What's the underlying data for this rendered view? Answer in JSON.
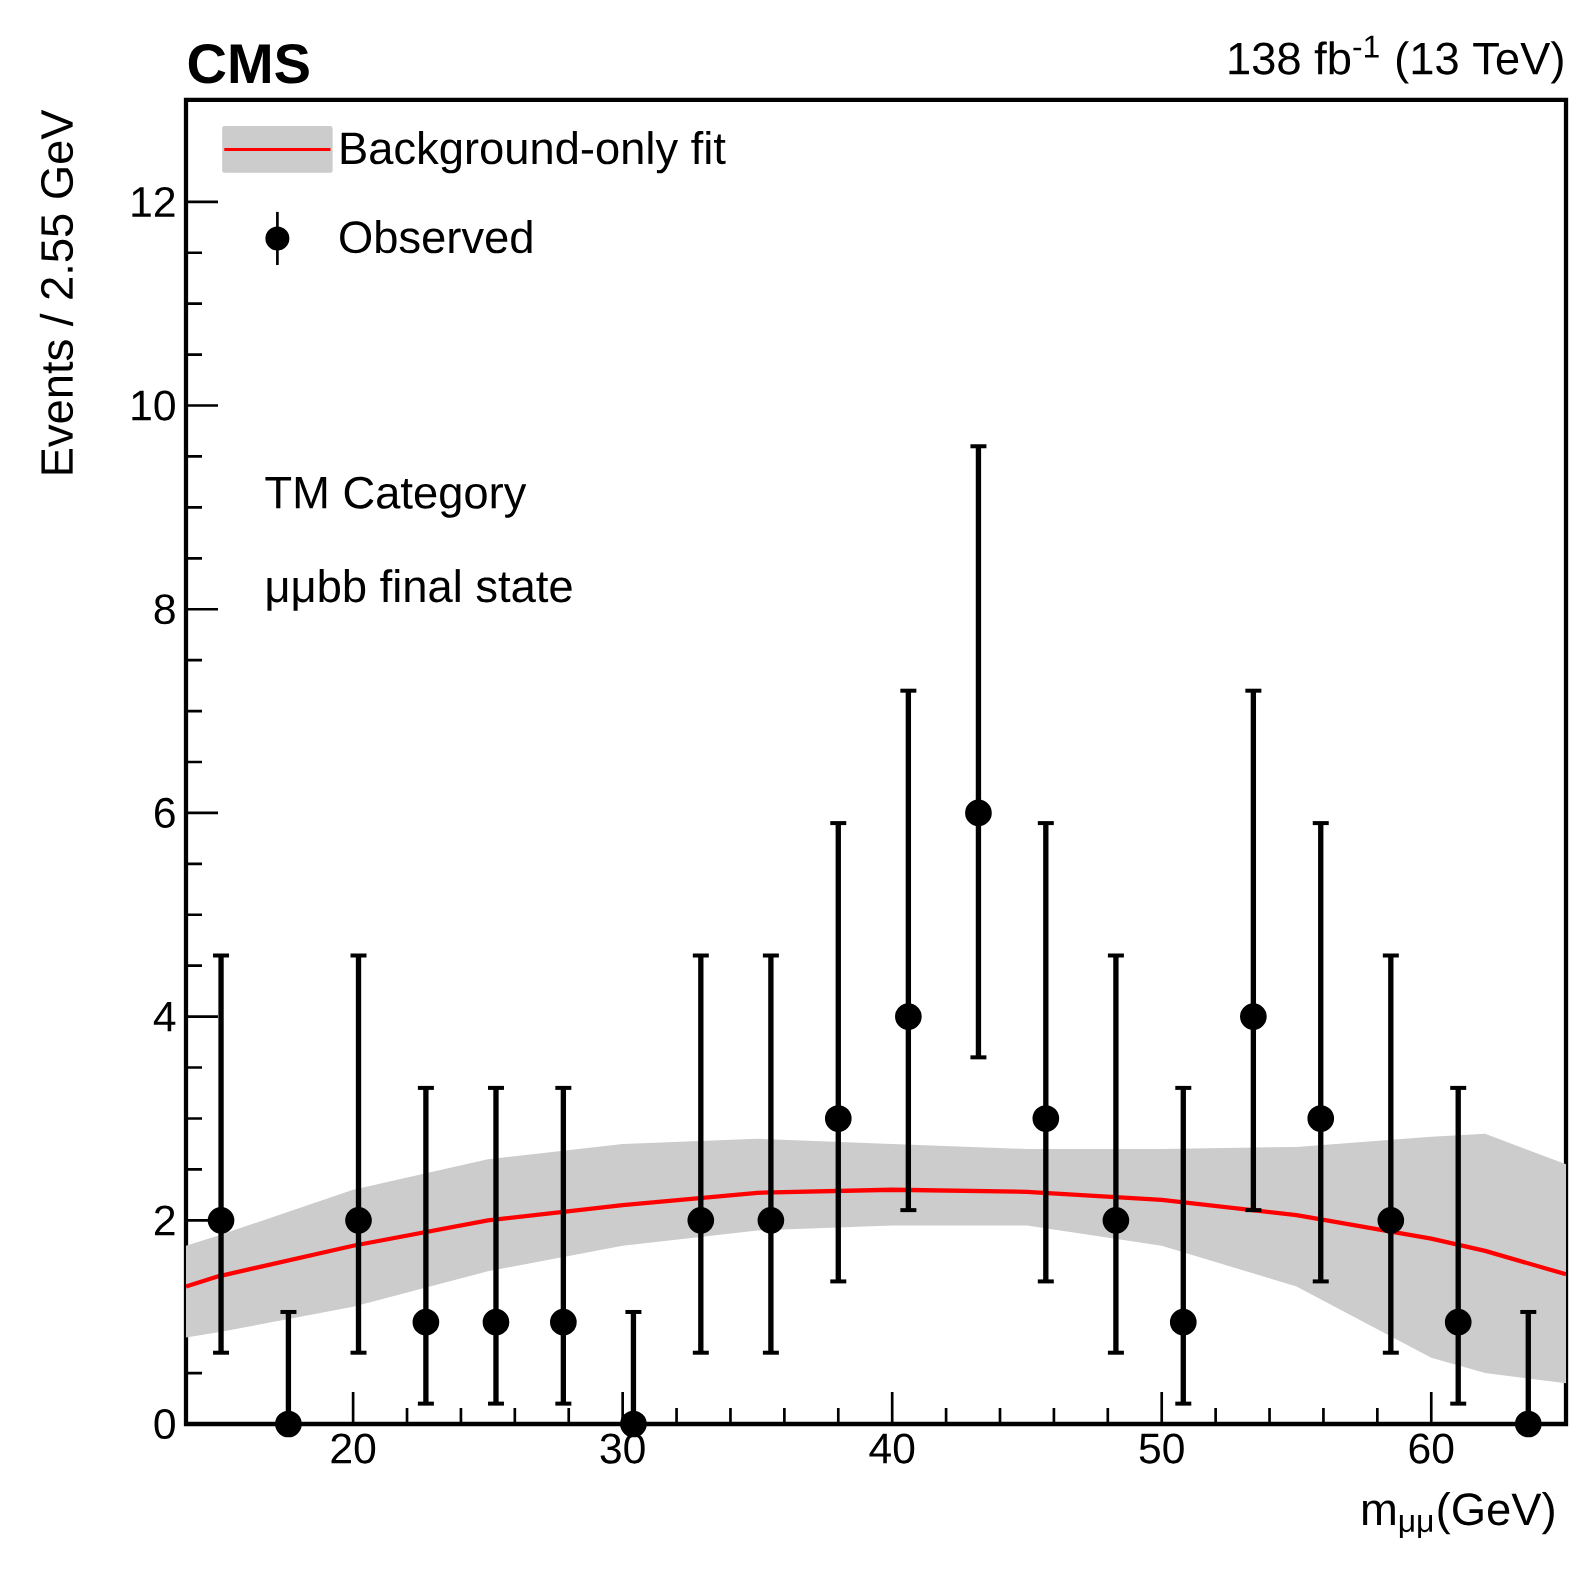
{
  "chart_data": {
    "type": "scatter",
    "title": "**CMS**",
    "subtitle": "138 fb$^{-1}$ (13 TeV)",
    "xlabel": "m$_{μμ}$(GeV)",
    "ylabel": "Events / 2.55 GeV",
    "annotations": [
      "TM Category",
      "μμbb final state"
    ],
    "xlim": [
      13.8,
      65
    ],
    "ylim": [
      0,
      13
    ],
    "xticks": [
      20,
      30,
      40,
      50,
      60
    ],
    "yticks": [
      0,
      2,
      4,
      6,
      8,
      10,
      12
    ],
    "grid": false,
    "legend": "top left",
    "series": [
      {
        "name": "Observed",
        "color": "#000000",
        "marker": "circle",
        "x": [
          15.1,
          17.6,
          20.2,
          22.7,
          25.3,
          27.8,
          30.4,
          32.9,
          35.5,
          38.0,
          40.6,
          43.2,
          45.7,
          48.3,
          50.8,
          53.4,
          55.9,
          58.5,
          61.0,
          63.6
        ],
        "values": [
          2,
          0,
          2,
          1,
          1,
          1,
          0,
          2,
          2,
          3,
          4,
          6,
          3,
          2,
          1,
          4,
          3,
          2,
          1,
          0
        ],
        "errors": [
          [
            0.7,
            4.6
          ],
          [
            0,
            1.1
          ],
          [
            0.7,
            4.6
          ],
          [
            0.2,
            3.3
          ],
          [
            0.2,
            3.3
          ],
          [
            0.2,
            3.3
          ],
          [
            0,
            1.1
          ],
          [
            0.7,
            4.6
          ],
          [
            0.7,
            4.6
          ],
          [
            1.4,
            5.9
          ],
          [
            2.1,
            7.2
          ],
          [
            3.6,
            9.6
          ],
          [
            1.4,
            5.9
          ],
          [
            0.7,
            4.6
          ],
          [
            0.2,
            3.3
          ],
          [
            2.1,
            7.2
          ],
          [
            1.4,
            5.9
          ],
          [
            0.7,
            4.6
          ],
          [
            0.2,
            3.3
          ],
          [
            0,
            1.1
          ]
        ]
      },
      {
        "name": "Background-only fit",
        "type": "line",
        "color": "#ff0000",
        "marker": "none",
        "x": [
          13.8,
          15,
          20,
          25,
          30,
          35,
          40,
          45,
          50,
          55,
          60,
          62,
          65
        ],
        "values": [
          1.35,
          1.45,
          1.75,
          2.0,
          2.15,
          2.27,
          2.3,
          2.28,
          2.2,
          2.05,
          1.82,
          1.7,
          1.47
        ],
        "lower": [
          0.85,
          0.9,
          1.15,
          1.5,
          1.75,
          1.9,
          1.95,
          1.95,
          1.75,
          1.35,
          0.65,
          0.5,
          0.4
        ],
        "upper": [
          1.75,
          1.85,
          2.3,
          2.6,
          2.75,
          2.8,
          2.75,
          2.7,
          2.7,
          2.72,
          2.82,
          2.85,
          2.55
        ]
      }
    ]
  }
}
